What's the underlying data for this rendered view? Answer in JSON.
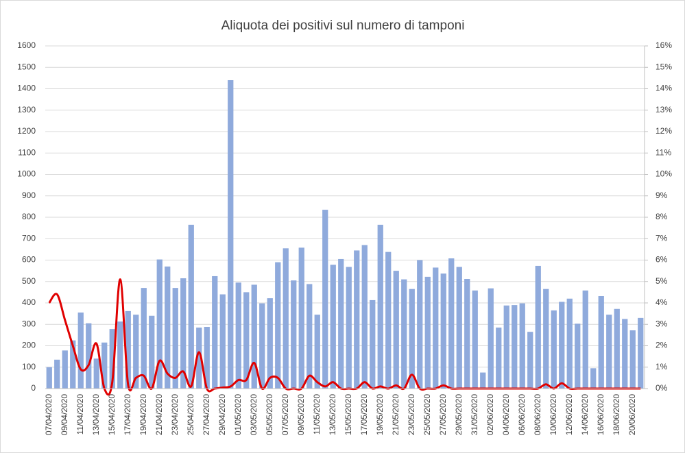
{
  "chart_data": {
    "type": "bar-line",
    "title": "Aliquota dei positivi sul numero di tamponi",
    "categories": [
      "07/04/2020",
      null,
      "09/04/2020",
      null,
      "11/04/2020",
      null,
      "13/04/2020",
      null,
      "15/04/2020",
      null,
      "17/04/2020",
      null,
      "19/04/2020",
      null,
      "21/04/2020",
      null,
      "23/04/2020",
      null,
      "25/04/2020",
      null,
      "27/04/2020",
      null,
      "29/04/2020",
      null,
      "01/05/2020",
      null,
      "03/05/2020",
      null,
      "05/05/2020",
      null,
      "07/05/2020",
      null,
      "09/05/2020",
      null,
      "11/05/2020",
      null,
      "13/05/2020",
      null,
      "15/05/2020",
      null,
      "17/05/2020",
      null,
      "19/05/2020",
      null,
      "21/05/2020",
      null,
      "23/05/2020",
      null,
      "25/05/2020",
      null,
      "27/05/2020",
      null,
      "29/05/2020",
      null,
      "31/05/2020",
      null,
      "02/06/2020",
      null,
      "04/06/2020",
      null,
      "06/06/2020",
      null,
      "08/06/2020",
      null,
      "10/06/2020",
      null,
      "12/06/2020",
      null,
      "14/06/2020",
      null,
      "16/06/2020",
      null,
      "18/06/2020",
      null,
      "20/06/2020",
      null
    ],
    "series": [
      {
        "type": "bar",
        "color": "#8faadc",
        "values": [
          100,
          135,
          178,
          225,
          355,
          305,
          140,
          215,
          278,
          313,
          362,
          345,
          470,
          340,
          603,
          570,
          470,
          515,
          765,
          285,
          288,
          525,
          440,
          1440,
          495,
          450,
          485,
          398,
          422,
          590,
          655,
          505,
          658,
          488,
          345,
          835,
          578,
          605,
          568,
          645,
          670,
          413,
          765,
          638,
          550,
          510,
          465,
          600,
          522,
          565,
          537,
          608,
          568,
          512,
          458,
          75,
          468,
          285,
          388,
          390,
          398,
          265,
          573,
          465,
          365,
          405,
          420,
          303,
          458,
          95,
          432,
          345,
          372,
          325,
          272,
          330
        ]
      },
      {
        "type": "line",
        "axis": "y2",
        "color": "#e00000",
        "smooth": true,
        "values": [
          4.0,
          4.4,
          3.2,
          2.0,
          0.9,
          1.1,
          2.1,
          0,
          0.3,
          5.1,
          0.2,
          0.5,
          0.6,
          0,
          1.3,
          0.7,
          0.5,
          0.8,
          0.1,
          1.7,
          0,
          0,
          0.05,
          0.1,
          0.4,
          0.4,
          1.2,
          0,
          0.5,
          0.5,
          0,
          0,
          0,
          0.6,
          0.3,
          0.1,
          0.3,
          0,
          0,
          0,
          0.3,
          0,
          0.1,
          0,
          0.15,
          0,
          0.65,
          0,
          0,
          0,
          0.15,
          0,
          0,
          0,
          0,
          0,
          0,
          0,
          0,
          0,
          0,
          0,
          0,
          0.2,
          0,
          0.25,
          0,
          0,
          0,
          0,
          0,
          0,
          0,
          0,
          0,
          0
        ]
      }
    ],
    "ylim": [
      0,
      1600
    ],
    "yticks": [
      0,
      100,
      200,
      300,
      400,
      500,
      600,
      700,
      800,
      900,
      1000,
      1100,
      1200,
      1300,
      1400,
      1500,
      1600
    ],
    "y2lim": [
      0,
      16
    ],
    "y2ticks": [
      {
        "value": 0,
        "label": "0%"
      },
      {
        "value": 1,
        "label": "1%"
      },
      {
        "value": 2,
        "label": "2%"
      },
      {
        "value": 3,
        "label": "3%"
      },
      {
        "value": 4,
        "label": "4%"
      },
      {
        "value": 5,
        "label": "5%"
      },
      {
        "value": 6,
        "label": "6%"
      },
      {
        "value": 7,
        "label": "7%"
      },
      {
        "value": 8,
        "label": "8%"
      },
      {
        "value": 9,
        "label": "9%"
      },
      {
        "value": 10,
        "label": "10%"
      },
      {
        "value": 11,
        "label": "11%"
      },
      {
        "value": 12,
        "label": "12%"
      },
      {
        "value": 13,
        "label": "13%"
      },
      {
        "value": 14,
        "label": "14%"
      },
      {
        "value": 15,
        "label": "15%"
      },
      {
        "value": 16,
        "label": "16%"
      }
    ],
    "grid": true
  }
}
